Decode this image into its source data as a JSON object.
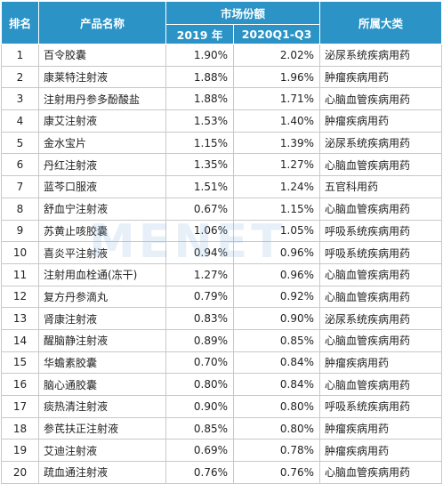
{
  "watermark": "MENET",
  "headers": {
    "rank": "排名",
    "name": "产品名称",
    "market_share": "市场份额",
    "y2019": "2019 年",
    "q2020": "2020Q1-Q3",
    "category": "所属大类"
  },
  "rows": [
    {
      "rank": "1",
      "name": "百令胶囊",
      "y2019": "1.90%",
      "q2020": "2.02%",
      "category": "泌尿系统疾病用药"
    },
    {
      "rank": "2",
      "name": "康莱特注射液",
      "y2019": "1.88%",
      "q2020": "1.96%",
      "category": "肿瘤疾病用药"
    },
    {
      "rank": "3",
      "name": "注射用丹参多酚酸盐",
      "y2019": "1.88%",
      "q2020": "1.71%",
      "category": "心脑血管疾病用药"
    },
    {
      "rank": "4",
      "name": "康艾注射液",
      "y2019": "1.53%",
      "q2020": "1.40%",
      "category": "肿瘤疾病用药"
    },
    {
      "rank": "5",
      "name": "金水宝片",
      "y2019": "1.15%",
      "q2020": "1.39%",
      "category": "泌尿系统疾病用药"
    },
    {
      "rank": "6",
      "name": "丹红注射液",
      "y2019": "1.35%",
      "q2020": "1.27%",
      "category": "心脑血管疾病用药"
    },
    {
      "rank": "7",
      "name": "蓝芩口服液",
      "y2019": "1.51%",
      "q2020": "1.24%",
      "category": "五官科用药"
    },
    {
      "rank": "8",
      "name": "舒血宁注射液",
      "y2019": "0.67%",
      "q2020": "1.15%",
      "category": "心脑血管疾病用药"
    },
    {
      "rank": "9",
      "name": "苏黄止咳胶囊",
      "y2019": "1.06%",
      "q2020": "1.05%",
      "category": "呼吸系统疾病用药"
    },
    {
      "rank": "10",
      "name": "喜炎平注射液",
      "y2019": "0.94%",
      "q2020": "0.96%",
      "category": "呼吸系统疾病用药"
    },
    {
      "rank": "11",
      "name": "注射用血栓通(冻干)",
      "y2019": "1.27%",
      "q2020": "0.96%",
      "category": "心脑血管疾病用药"
    },
    {
      "rank": "12",
      "name": "复方丹参滴丸",
      "y2019": "0.79%",
      "q2020": "0.92%",
      "category": "心脑血管疾病用药"
    },
    {
      "rank": "13",
      "name": "肾康注射液",
      "y2019": "0.83%",
      "q2020": "0.90%",
      "category": "泌尿系统疾病用药"
    },
    {
      "rank": "14",
      "name": "醒脑静注射液",
      "y2019": "0.89%",
      "q2020": "0.85%",
      "category": "心脑血管疾病用药"
    },
    {
      "rank": "15",
      "name": "华蟾素胶囊",
      "y2019": "0.70%",
      "q2020": "0.84%",
      "category": "肿瘤疾病用药"
    },
    {
      "rank": "16",
      "name": "脑心通胶囊",
      "y2019": "0.80%",
      "q2020": "0.84%",
      "category": "心脑血管疾病用药"
    },
    {
      "rank": "17",
      "name": "痰热清注射液",
      "y2019": "0.90%",
      "q2020": "0.80%",
      "category": "呼吸系统疾病用药"
    },
    {
      "rank": "18",
      "name": "参芪扶正注射液",
      "y2019": "0.85%",
      "q2020": "0.80%",
      "category": "肿瘤疾病用药"
    },
    {
      "rank": "19",
      "name": "艾迪注射液",
      "y2019": "0.69%",
      "q2020": "0.78%",
      "category": "肿瘤疾病用药"
    },
    {
      "rank": "20",
      "name": "疏血通注射液",
      "y2019": "0.76%",
      "q2020": "0.76%",
      "category": "心脑血管疾病用药"
    }
  ]
}
